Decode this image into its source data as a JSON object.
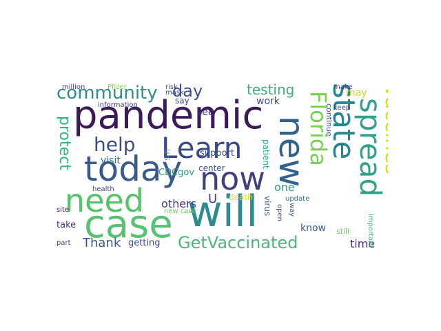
{
  "word_cloud": {
    "words": [
      {
        "text": "pandemic",
        "color": "#3b1a59"
      },
      {
        "text": "will",
        "color": "#2d8c8e"
      },
      {
        "text": "case",
        "color": "#58c173"
      },
      {
        "text": "today",
        "color": "#385a8c"
      },
      {
        "text": "need",
        "color": "#56c26a"
      },
      {
        "text": "Learn",
        "color": "#3a4a88"
      },
      {
        "text": "now",
        "color": "#40407f"
      },
      {
        "text": "help",
        "color": "#3e4d89"
      },
      {
        "text": "community",
        "color": "#2f8e8c"
      },
      {
        "text": "day",
        "color": "#3c4f8a"
      },
      {
        "text": "testing",
        "color": "#3dac7f"
      },
      {
        "text": "GetVaccinated",
        "color": "#4bb879"
      },
      {
        "text": "new",
        "color": "#30628d"
      },
      {
        "text": "state",
        "color": "#25868e"
      },
      {
        "text": "spread",
        "color": "#2ea28a"
      },
      {
        "text": "Vaccines",
        "color": "#cde11d"
      },
      {
        "text": "Florida",
        "color": "#7ad151"
      },
      {
        "text": "protect",
        "color": "#31b57b"
      },
      {
        "text": "Thank",
        "color": "#3a5a8c"
      },
      {
        "text": "others",
        "color": "#443983"
      },
      {
        "text": "U",
        "color": "#404588"
      },
      {
        "text": "work",
        "color": "#3d4e89"
      },
      {
        "text": "see",
        "color": "#46317e"
      },
      {
        "text": "one",
        "color": "#2ba383"
      },
      {
        "text": "time",
        "color": "#45307d"
      },
      {
        "text": "may",
        "color": "#bfdf25"
      },
      {
        "text": "know",
        "color": "#395c8d"
      },
      {
        "text": "visit",
        "color": "#2b6f8e"
      },
      {
        "text": "support",
        "color": "#3a5589"
      },
      {
        "text": "CDCgov",
        "color": "#2c9c88"
      },
      {
        "text": "getting",
        "color": "#3d4b89"
      },
      {
        "text": "take",
        "color": "#472d7b"
      },
      {
        "text": "Pfizer",
        "color": "#7fd34e"
      },
      {
        "text": "million",
        "color": "#4a3580"
      },
      {
        "text": "information",
        "color": "#472c7a"
      },
      {
        "text": "risk",
        "color": "#3b5289"
      },
      {
        "text": "mask",
        "color": "#3d4e89"
      },
      {
        "text": "say",
        "color": "#404588"
      },
      {
        "text": "center",
        "color": "#3b5289"
      },
      {
        "text": "death",
        "color": "#e7e419"
      },
      {
        "text": "virus",
        "color": "#3c5a8c"
      },
      {
        "text": "patient",
        "color": "#2ab07f"
      },
      {
        "text": "update",
        "color": "#2a788e"
      },
      {
        "text": "continue",
        "color": "#3a538b"
      },
      {
        "text": "keep",
        "color": "#404588"
      },
      {
        "text": "make",
        "color": "#443a83"
      },
      {
        "text": "still",
        "color": "#6ccd5a"
      },
      {
        "text": "way",
        "color": "#3b5289"
      },
      {
        "text": "open",
        "color": "#3b5289"
      },
      {
        "text": "important",
        "color": "#35b779"
      },
      {
        "text": "new case",
        "color": "#6ccd5a"
      },
      {
        "text": "health",
        "color": "#404588"
      },
      {
        "text": "site",
        "color": "#3b1a59"
      },
      {
        "text": "part",
        "color": "#404588"
      },
      {
        "text": "U S",
        "color": "#3dac7f"
      }
    ]
  }
}
